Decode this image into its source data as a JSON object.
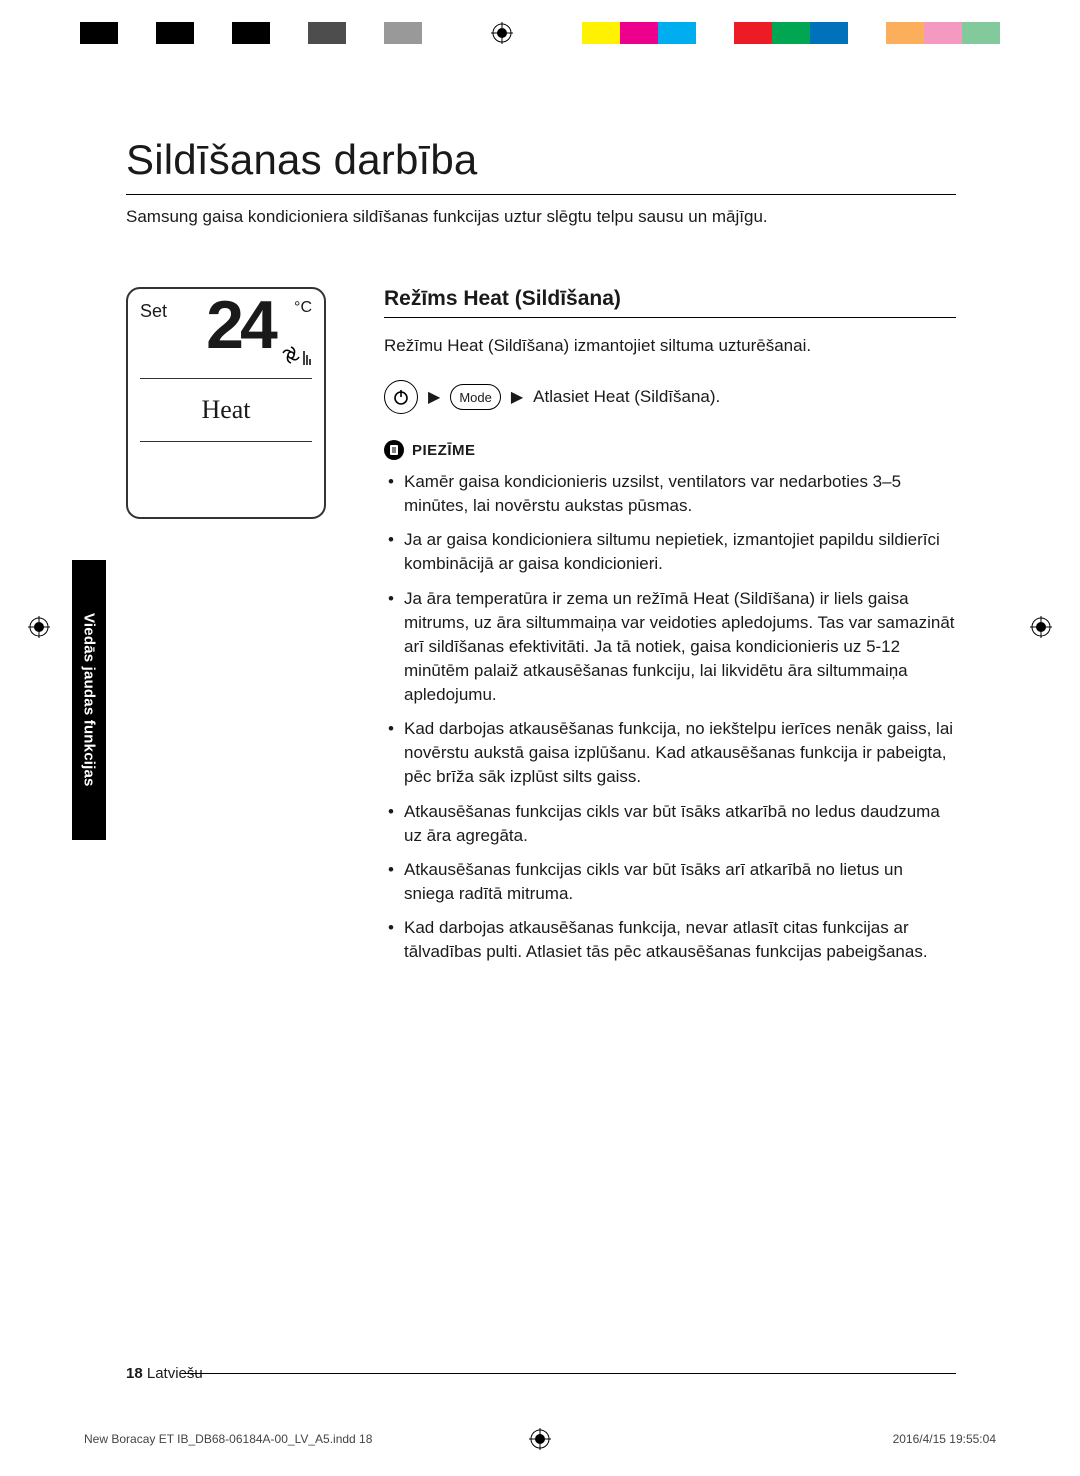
{
  "print_bars_left": [
    "#000000",
    "#ffffff",
    "#000000",
    "#ffffff",
    "#000000",
    "#ffffff",
    "#4d4d4d",
    "#ffffff",
    "#999999"
  ],
  "print_bars_right": [
    "#fff200",
    "#ec008c",
    "#00adef",
    "#ffffff",
    "#ed1c24",
    "#00a651",
    "#0072bc",
    "#ffffff",
    "#fbaf5d",
    "#f49ac1",
    "#82ca9c"
  ],
  "side_tab": "Viedās jaudas funkcijas",
  "title": "Sildīšanas darbība",
  "subtitle": "Samsung gaisa kondicioniera sildīšanas funkcijas uztur slēgtu telpu sausu un mājīgu.",
  "lcd": {
    "set": "Set",
    "temp": "24",
    "unit": "°C",
    "mode": "Heat"
  },
  "section_title": "Režīms Heat (Sildīšana)",
  "section_intro": "Režīmu Heat (Sildīšana) izmantojiet siltuma uzturēšanai.",
  "mode_button": "Mode",
  "step_text": "Atlasiet Heat (Sildīšana).",
  "note_label": "PIEZĪME",
  "notes": [
    "Kamēr gaisa kondicionieris uzsilst, ventilators var nedarboties 3–5 minūtes, lai novērstu aukstas pūsmas.",
    "Ja ar gaisa kondicioniera siltumu nepietiek, izmantojiet papildu sildierīci kombinācijā ar gaisa kondicionieri.",
    "Ja āra temperatūra ir zema un režīmā Heat (Sildīšana) ir liels gaisa mitrums, uz āra siltummaiņa var veidoties apledojums. Tas var samazināt arī sildīšanas efektivitāti. Ja tā notiek, gaisa kondicionieris uz 5-12 minūtēm palaiž atkausēšanas funkciju, lai likvidētu āra siltummaiņa apledojumu.",
    "Kad darbojas atkausēšanas funkcija, no iekštelpu ierīces nenāk gaiss, lai novērstu aukstā gaisa izplūšanu. Kad atkausēšanas funkcija ir pabeigta, pēc brīža sāk izplūst silts gaiss.",
    "Atkausēšanas funkcijas cikls var būt īsāks atkarībā no ledus daudzuma uz āra agregāta.",
    "Atkausēšanas funkcijas cikls var būt īsāks arī atkarībā no lietus un sniega radītā mitruma.",
    "Kad darbojas atkausēšanas funkcija, nevar atlasīt citas funkcijas ar tālvadības pulti. Atlasiet tās pēc atkausēšanas funkcijas pabeigšanas."
  ],
  "page_number": "18",
  "page_lang": "Latviešu",
  "footer_file": "New Boracay ET IB_DB68-06184A-00_LV_A5.indd   18",
  "footer_date": "2016/4/15   19:55:04"
}
